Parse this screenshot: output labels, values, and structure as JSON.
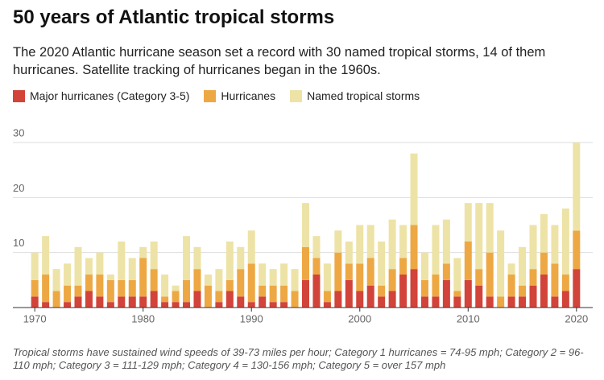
{
  "chart_data": {
    "type": "stacked-bar",
    "title": "50 years of Atlantic tropical storms",
    "subtitle": "The 2020 Atlantic hurricane season set a record with 30 named tropical storms, 14 of them hurricanes. Satellite tracking of hurricanes began in the 1960s.",
    "note": "Tropical storms have sustained wind speeds of 39-73 miles per hour; Category 1 hurricanes = 74-95 mph; Category 2 = 96-110 mph; Category 3 = 111-129 mph; Category 4 = 130-156 mph; Category 5 = over 157 mph",
    "x": [
      1970,
      1971,
      1972,
      1973,
      1974,
      1975,
      1976,
      1977,
      1978,
      1979,
      1980,
      1981,
      1982,
      1983,
      1984,
      1985,
      1986,
      1987,
      1988,
      1989,
      1990,
      1991,
      1992,
      1993,
      1994,
      1995,
      1996,
      1997,
      1998,
      1999,
      2000,
      2001,
      2002,
      2003,
      2004,
      2005,
      2006,
      2007,
      2008,
      2009,
      2010,
      2011,
      2012,
      2013,
      2014,
      2015,
      2016,
      2017,
      2018,
      2019,
      2020
    ],
    "series": [
      {
        "name": "Major hurricanes (Category 3-5)",
        "color": "#d2433a",
        "values": [
          2,
          1,
          0,
          1,
          2,
          3,
          2,
          1,
          2,
          2,
          2,
          3,
          1,
          1,
          1,
          3,
          0,
          1,
          3,
          2,
          1,
          2,
          1,
          1,
          0,
          5,
          6,
          1,
          3,
          5,
          3,
          4,
          2,
          3,
          6,
          7,
          2,
          2,
          5,
          2,
          5,
          4,
          2,
          0,
          2,
          2,
          4,
          6,
          2,
          3,
          7
        ]
      },
      {
        "name": "Hurricanes",
        "color": "#eda844",
        "values": [
          3,
          5,
          3,
          3,
          2,
          3,
          4,
          4,
          3,
          3,
          7,
          4,
          1,
          2,
          4,
          4,
          4,
          2,
          2,
          5,
          7,
          2,
          3,
          3,
          3,
          6,
          3,
          2,
          7,
          3,
          5,
          5,
          2,
          4,
          3,
          8,
          3,
          4,
          3,
          1,
          7,
          3,
          8,
          2,
          4,
          2,
          3,
          4,
          6,
          3,
          7
        ]
      },
      {
        "name": "Named tropical storms",
        "color": "#ede3a6",
        "values": [
          5,
          7,
          4,
          4,
          7,
          3,
          4,
          1,
          7,
          4,
          2,
          5,
          4,
          1,
          8,
          4,
          2,
          4,
          7,
          4,
          6,
          4,
          3,
          4,
          4,
          8,
          4,
          5,
          4,
          4,
          7,
          6,
          8,
          9,
          6,
          13,
          5,
          9,
          8,
          6,
          7,
          12,
          9,
          12,
          2,
          7,
          8,
          7,
          7,
          12,
          16
        ]
      }
    ],
    "xlim": [
      1968.5,
      2021.5
    ],
    "xticks": [
      1970,
      1980,
      1990,
      2000,
      2010,
      2020
    ],
    "ylim": [
      0,
      30
    ],
    "yticks": [
      10,
      20,
      30
    ],
    "grid": true
  }
}
